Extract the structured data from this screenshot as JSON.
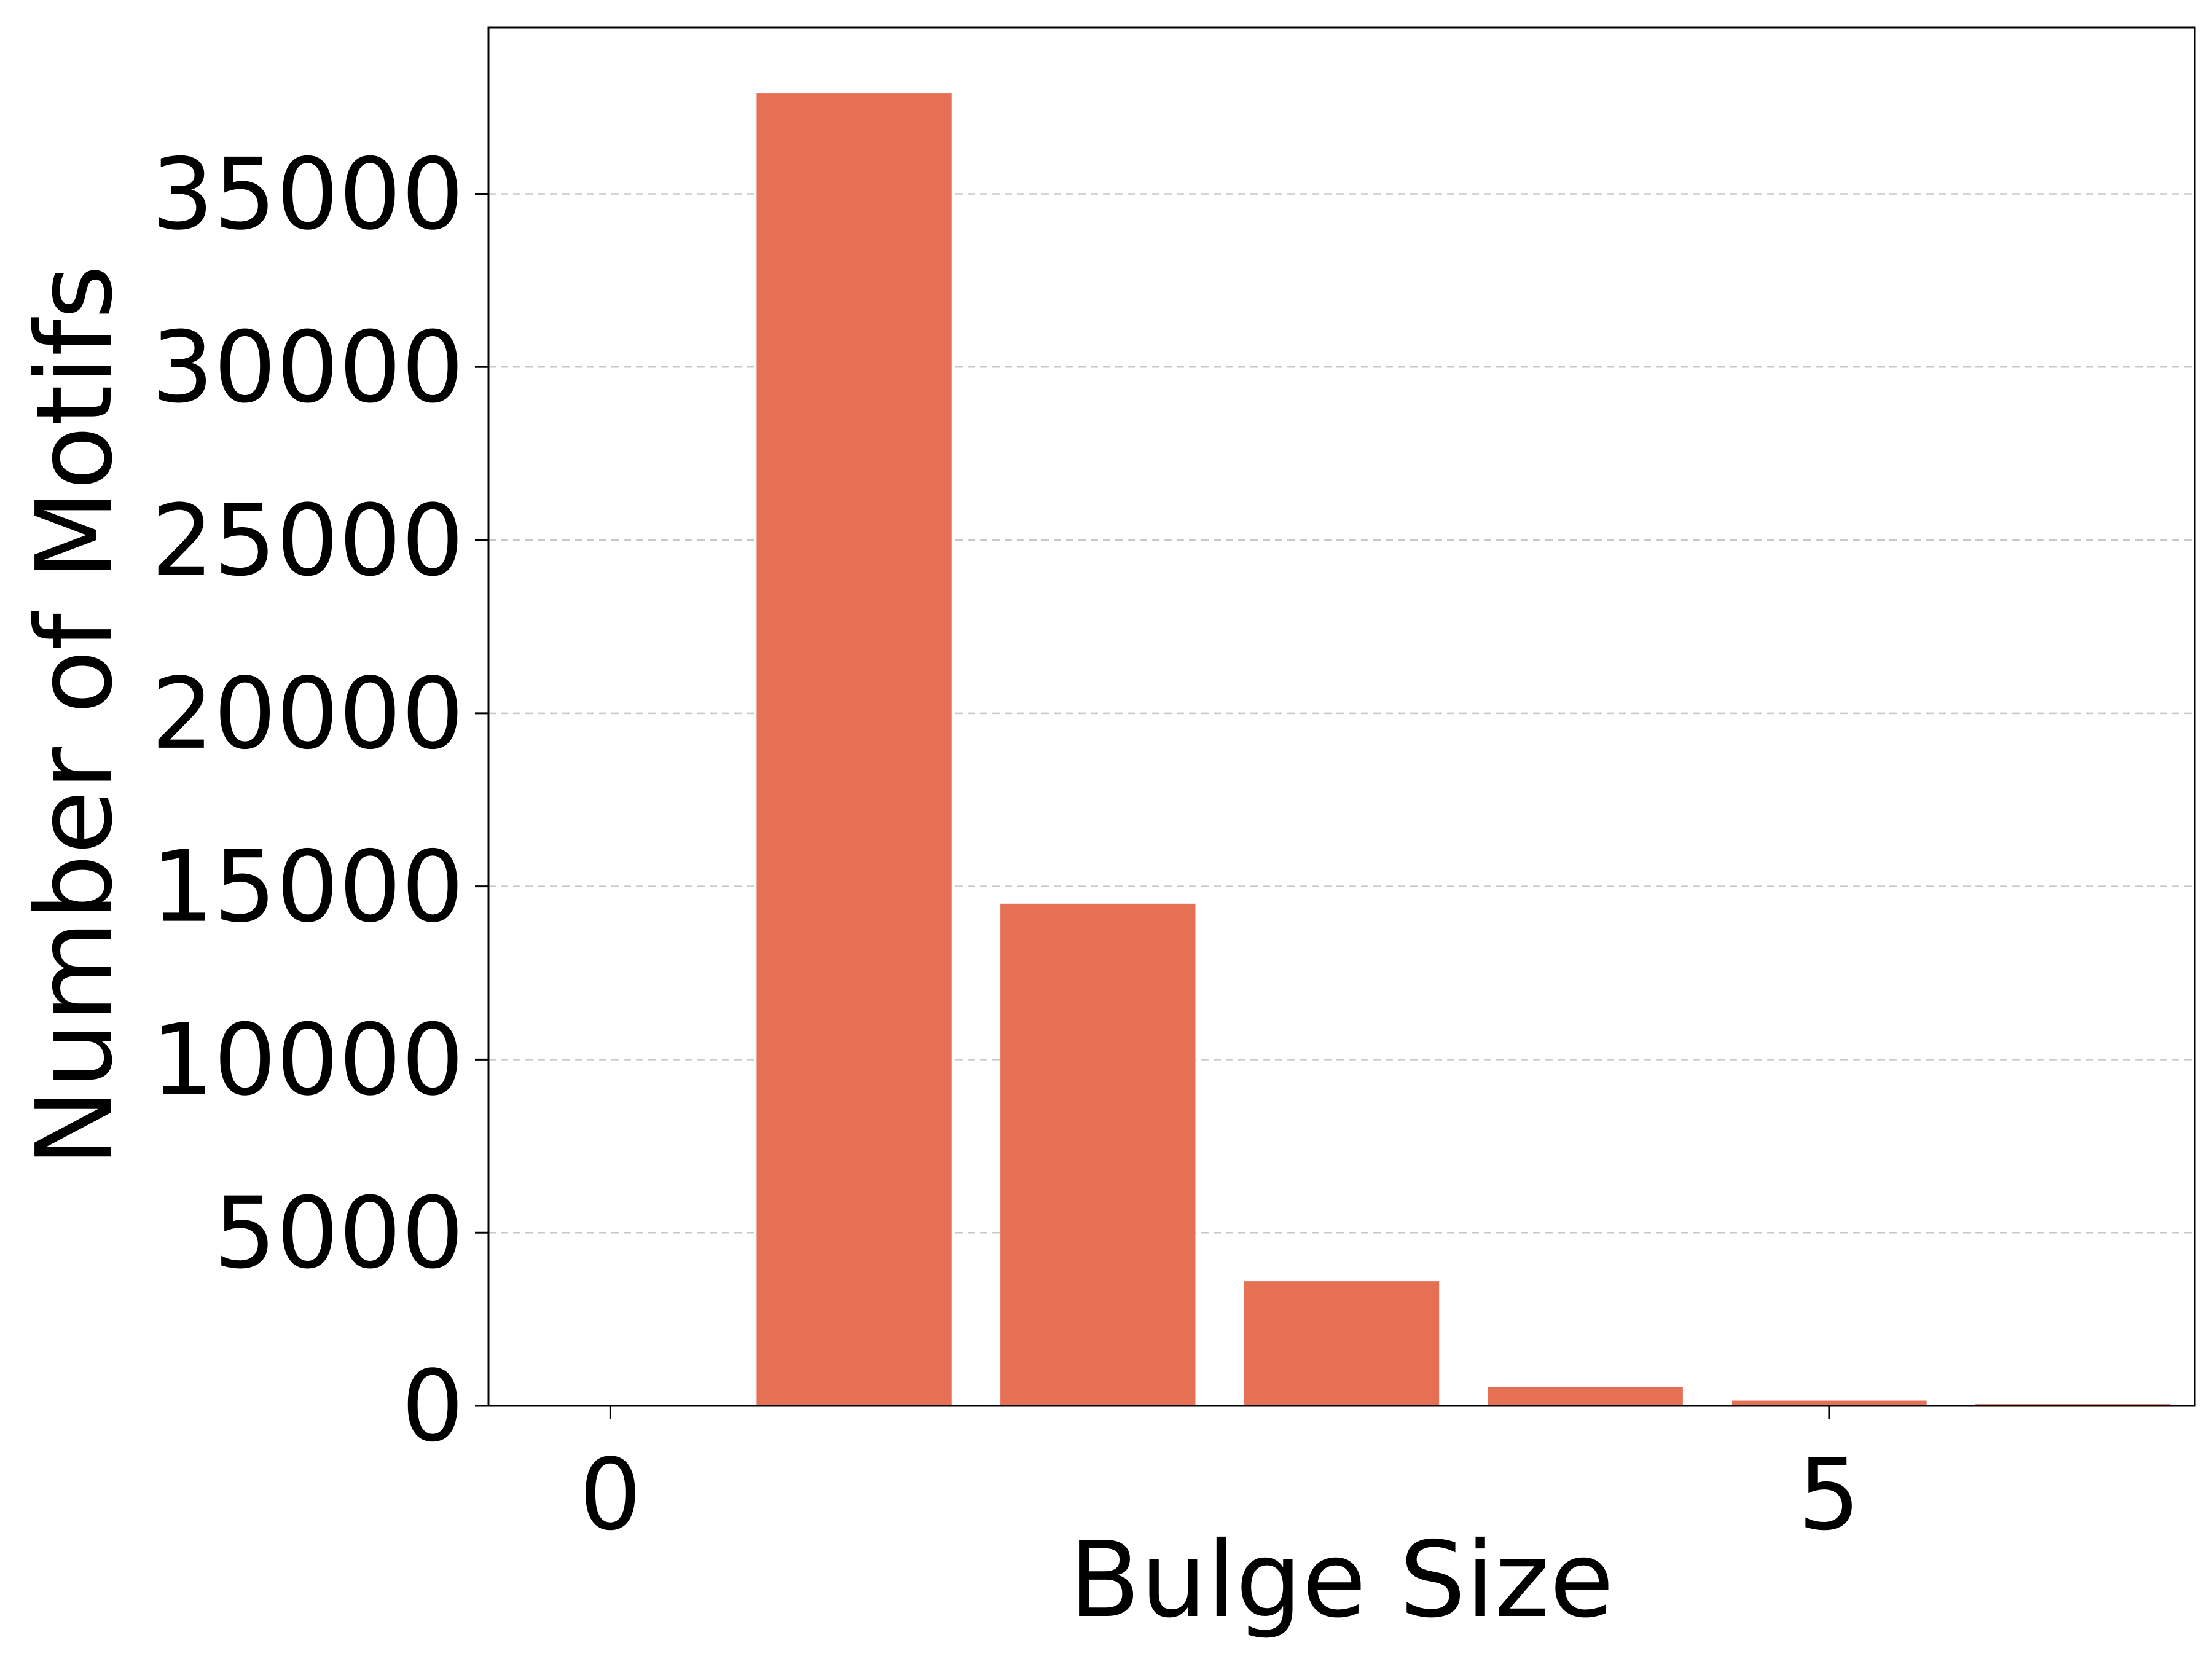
{
  "chart_data": {
    "type": "bar",
    "title": "",
    "xlabel": "Bulge Size",
    "ylabel": "Number of Motifs",
    "x": [
      1,
      2,
      3,
      4,
      5,
      6
    ],
    "values": [
      37900,
      14500,
      3600,
      550,
      150,
      50
    ],
    "xlim": [
      -0.5,
      6.5
    ],
    "ylim": [
      0,
      39800
    ],
    "xticks": [
      0,
      5
    ],
    "yticks": [
      0,
      5000,
      10000,
      15000,
      20000,
      25000,
      30000,
      35000
    ],
    "bar_width": 0.8,
    "bar_color": "#e57053",
    "grid": "y-dashed",
    "legend": "none"
  }
}
